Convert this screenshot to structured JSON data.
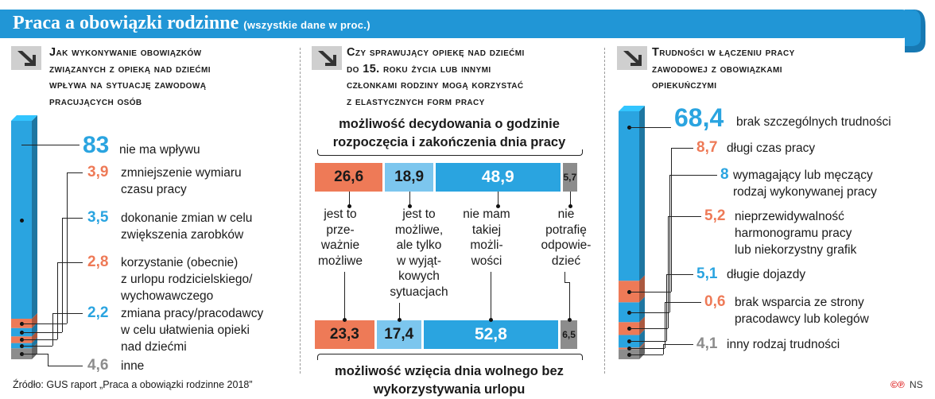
{
  "title": "Praca a obowiązki rodzinne",
  "subtitle": "(wszystkie dane w proc.)",
  "source": "Źródło: GUS raport „Praca a obowiązki rodzinne 2018”",
  "logo": "NS",
  "colors": {
    "blue": "#2aa4e0",
    "orange": "#ee7a57",
    "gray": "#8c8c8c",
    "banner": "#2196d6"
  },
  "chart_data": [
    {
      "type": "bar",
      "title": "Jak wykonywanie obowiązków związanych z opieką nad dziećmi wpływa na sytuację zawodową pracujących osób",
      "categories": [
        "nie ma wpływu",
        "zmniejszenie wymiaru czasu pracy",
        "dokonanie zmian w celu zwiększenia zarobków",
        "korzystanie (obecnie) z urlopu rodzicielskiego/ wychowawczego",
        "zmiana pracy/pracodawcy w celu ułatwienia opieki nad dziećmi",
        "inne"
      ],
      "values": [
        83,
        3.9,
        3.5,
        2.8,
        2.2,
        4.6
      ],
      "labels": [
        "83",
        "3,9",
        "3,5",
        "2,8",
        "2,2",
        "4,6"
      ],
      "colors": [
        "#2aa4e0",
        "#ee7a57",
        "#2aa4e0",
        "#ee7a57",
        "#2aa4e0",
        "#8c8c8c"
      ]
    },
    {
      "type": "bar",
      "title": "Czy sprawujący opiekę nad dziećmi do 15. roku życia lub innymi członkami rodziny mogą korzystać z elastycznych form pracy",
      "categories": [
        "jest to prze-ważnie możliwe",
        "jest to możliwe, ale tylko w wyjątkowych sytuacjach",
        "nie mam takiej możli-wości",
        "nie potrafię odpowie-dzieć"
      ],
      "series": [
        {
          "name": "możliwość decydowania o godzinie rozpoczęcia i zakończenia dnia pracy",
          "values": [
            26.6,
            18.9,
            48.9,
            5.7
          ],
          "labels": [
            "26,6",
            "18,9",
            "48,9",
            "5,7"
          ]
        },
        {
          "name": "możliwość wzięcia dnia wolnego bez wykorzystywania urlopu",
          "values": [
            23.3,
            17.4,
            52.8,
            6.5
          ],
          "labels": [
            "23,3",
            "17,4",
            "52,8",
            "6,5"
          ]
        }
      ],
      "colors": [
        "#ee7a57",
        "#7cc6ee",
        "#2aa4e0",
        "#8c8c8c"
      ]
    },
    {
      "type": "bar",
      "title": "Trudności w łączeniu pracy zawodowej z obowiązkami opiekuńczymi",
      "categories": [
        "brak szczególnych trudności",
        "długi czas pracy",
        "wymagający lub męczący rodzaj wykonywanej pracy",
        "nieprzewidywalność harmonogramu pracy lub niekorzystny grafik",
        "długie dojazdy",
        "brak wsparcia ze strony pracodawcy lub kolegów",
        "inny rodzaj trudności"
      ],
      "values": [
        68.4,
        8.7,
        8,
        5.2,
        5.1,
        0.6,
        4.1
      ],
      "labels": [
        "68,4",
        "8,7",
        "8",
        "5,2",
        "5,1",
        "0,6",
        "4,1"
      ],
      "colors": [
        "#2aa4e0",
        "#ee7a57",
        "#2aa4e0",
        "#ee7a57",
        "#2aa4e0",
        "#ee7a57",
        "#8c8c8c"
      ]
    }
  ],
  "panel1": {
    "heading": "Jak wykonywanie obowiązków\nzwiązanych z opieką nad dziećmi\nwpływa na sytuację zawodową\npracujących osób",
    "items": [
      {
        "value": "83",
        "label": "nie ma wpływu"
      },
      {
        "value": "3,9",
        "label": "zmniejszenie wymiaru\nczasu pracy"
      },
      {
        "value": "3,5",
        "label": "dokonanie zmian w celu\nzwiększenia zarobków"
      },
      {
        "value": "2,8",
        "label": "korzystanie (obecnie)\nz urlopu rodzicielskiego/\nwychowawczego"
      },
      {
        "value": "2,2",
        "label": "zmiana pracy/pracodawcy\nw celu ułatwienia opieki\nnad dziećmi"
      },
      {
        "value": "4,6",
        "label": "inne"
      }
    ]
  },
  "panel2": {
    "heading": "Czy sprawujący opiekę nad dziećmi\ndo 15. roku życia lub innymi\nczłonkami rodziny mogą korzystać\nz elastycznych form pracy",
    "top_label": "możliwość decydowania o godzinie\nrozpoczęcia i zakończenia dnia pracy",
    "bottom_label": "możliwość wzięcia dnia wolnego bez\nwykorzystywania urlopu",
    "category_labels": [
      "jest to\nprze-\nważnie\nmożliwe",
      "jest to\nmożliwe,\nale tylko\nw wyjąt-\nkowych\nsytuacjach",
      "nie mam\ntakiej\nmożli-\nwości",
      "nie\npotrafię\nodpowie-\ndzieć"
    ]
  },
  "panel3": {
    "heading": "Trudności w łączeniu pracy\nzawodowej z obowiązkami\nopiekuńczymi",
    "items": [
      {
        "value": "68,4",
        "label": "brak szczególnych trudności"
      },
      {
        "value": "8,7",
        "label": "długi czas pracy"
      },
      {
        "value": "8",
        "label": "wymagający lub męczący\nrodzaj wykonywanej pracy"
      },
      {
        "value": "5,2",
        "label": "nieprzewidywalność\nharmonogramu pracy\nlub niekorzystny grafik"
      },
      {
        "value": "5,1",
        "label": "długie dojazdy"
      },
      {
        "value": "0,6",
        "label": "brak wsparcia ze strony\npracodawcy lub kolegów"
      },
      {
        "value": "4,1",
        "label": "inny rodzaj trudności"
      }
    ]
  }
}
